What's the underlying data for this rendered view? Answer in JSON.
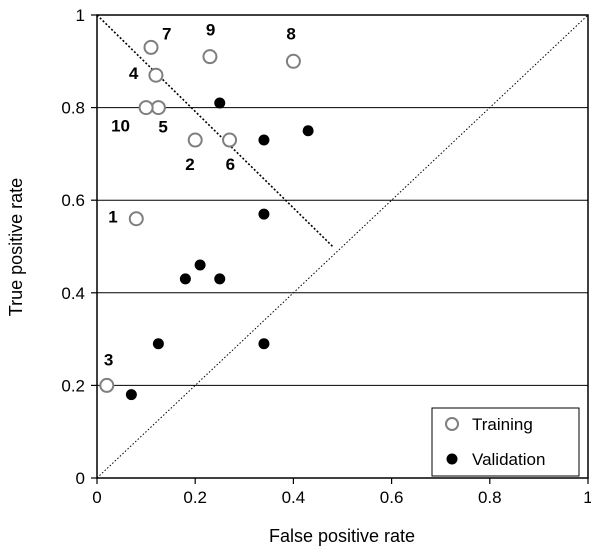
{
  "chart_data": {
    "type": "scatter",
    "title": "",
    "xlabel": "False positive rate",
    "ylabel": "True positive rate",
    "xlim": [
      0,
      1
    ],
    "ylim": [
      0,
      1
    ],
    "x_ticks": [
      "0",
      "0.2",
      "0.4",
      "0.6",
      "0.8",
      "1"
    ],
    "y_ticks": [
      "0",
      "0.2",
      "0.4",
      "0.6",
      "0.8",
      "1"
    ],
    "horizontal_grid": true,
    "vertical_grid": false,
    "legend_position": "bottom-right",
    "series": [
      {
        "name": "Training",
        "marker": "open-circle",
        "color": "#7f7f7f",
        "points": [
          {
            "label": "1",
            "x": 0.08,
            "y": 0.56
          },
          {
            "label": "2",
            "x": 0.2,
            "y": 0.73
          },
          {
            "label": "3",
            "x": 0.02,
            "y": 0.2
          },
          {
            "label": "4",
            "x": 0.12,
            "y": 0.87
          },
          {
            "label": "5",
            "x": 0.125,
            "y": 0.8
          },
          {
            "label": "6",
            "x": 0.27,
            "y": 0.73
          },
          {
            "label": "7",
            "x": 0.11,
            "y": 0.93
          },
          {
            "label": "8",
            "x": 0.4,
            "y": 0.9
          },
          {
            "label": "9",
            "x": 0.23,
            "y": 0.91
          },
          {
            "label": "10",
            "x": 0.1,
            "y": 0.8
          }
        ]
      },
      {
        "name": "Validation",
        "marker": "filled-circle",
        "color": "#000000",
        "points": [
          {
            "x": 0.07,
            "y": 0.18
          },
          {
            "x": 0.125,
            "y": 0.29
          },
          {
            "x": 0.34,
            "y": 0.29
          },
          {
            "x": 0.18,
            "y": 0.43
          },
          {
            "x": 0.21,
            "y": 0.46
          },
          {
            "x": 0.25,
            "y": 0.43
          },
          {
            "x": 0.34,
            "y": 0.57
          },
          {
            "x": 0.34,
            "y": 0.73
          },
          {
            "x": 0.25,
            "y": 0.81
          },
          {
            "x": 0.43,
            "y": 0.75
          }
        ]
      }
    ],
    "reference_lines": [
      {
        "name": "chance-diagonal",
        "from": [
          0,
          0
        ],
        "to": [
          1,
          1
        ],
        "style": "dotted"
      },
      {
        "name": "tradeoff-line",
        "from": [
          0,
          1
        ],
        "to": [
          0.48,
          0.5
        ],
        "style": "dashed"
      }
    ]
  }
}
